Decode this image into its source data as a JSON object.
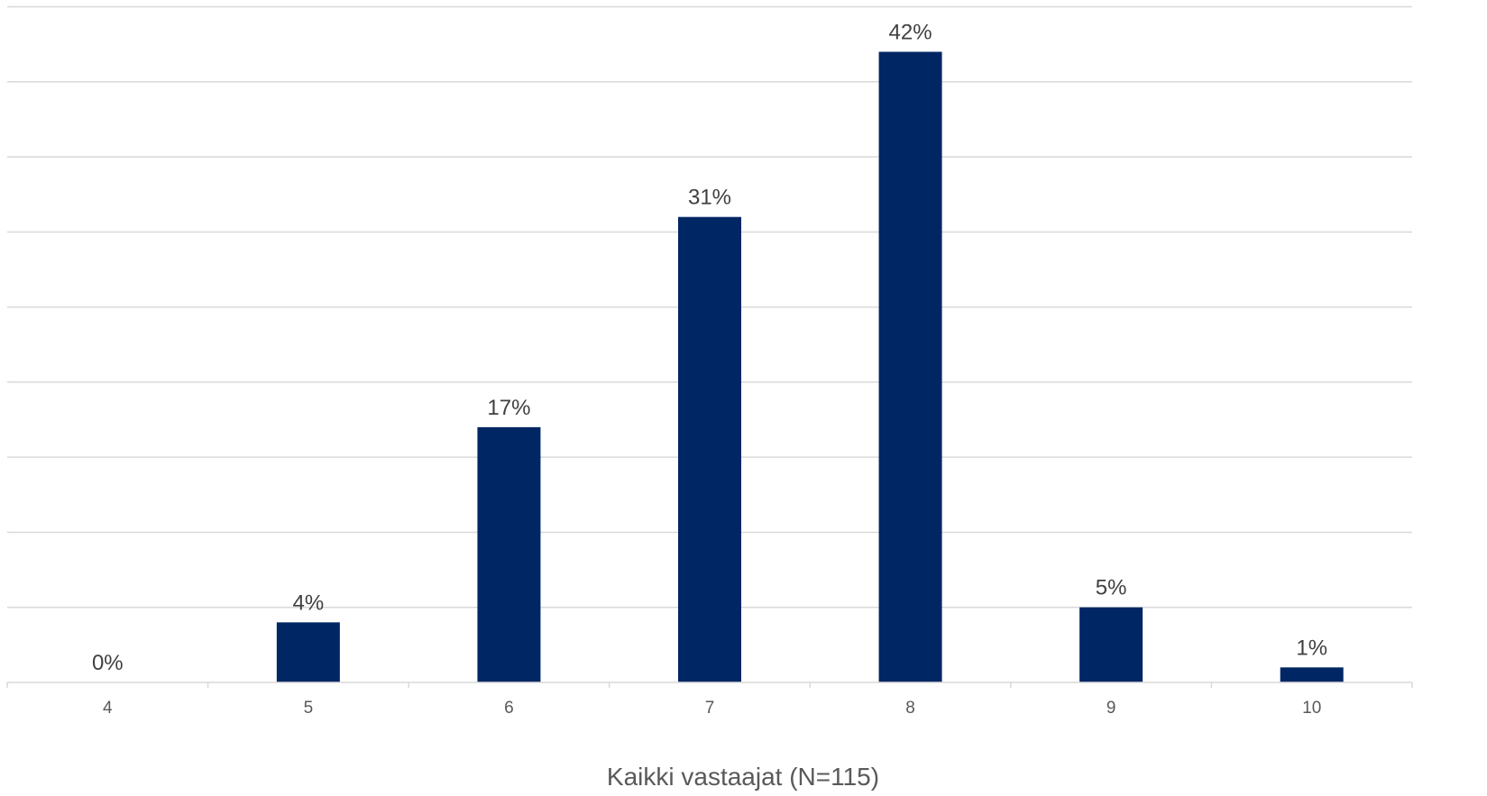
{
  "chart_data": {
    "type": "bar",
    "categories": [
      "4",
      "5",
      "6",
      "7",
      "8",
      "9",
      "10"
    ],
    "series": [
      {
        "values": [
          0,
          4,
          17,
          31,
          42,
          5,
          1
        ],
        "color": "#002663"
      }
    ],
    "data_labels": [
      "0%",
      "4%",
      "17%",
      "31%",
      "42%",
      "5%",
      "1%"
    ],
    "value_unit": "%",
    "xlabel": "Kaikki vastaajat (N=115)",
    "ylabel": "",
    "ylim": [
      0,
      45
    ],
    "grid": true,
    "legend": "none"
  }
}
